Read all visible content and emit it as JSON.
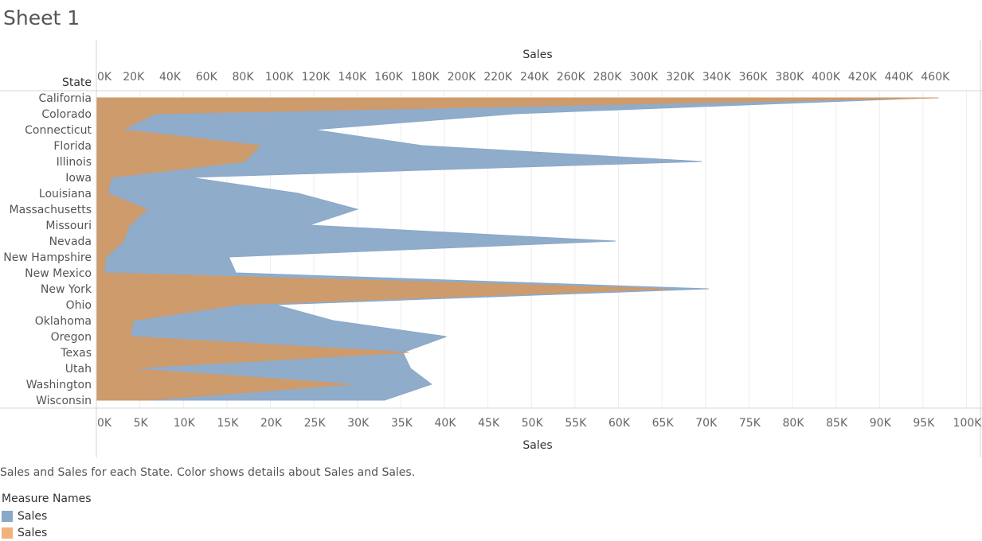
{
  "sheet_title": "Sheet 1",
  "caption": "Sales and Sales for each State.  Color shows details about Sales and Sales.",
  "legend": {
    "title": "Measure Names",
    "items": [
      {
        "label": "Sales",
        "color": "#8aa8c8"
      },
      {
        "label": "Sales",
        "color": "#f0b27a"
      }
    ]
  },
  "chart_data": {
    "type": "area",
    "orientation": "horizontal",
    "row_header": "State",
    "categories": [
      "California",
      "Colorado",
      "Connecticut",
      "Florida",
      "Illinois",
      "Iowa",
      "Louisiana",
      "Massachusetts",
      "Missouri",
      "Nevada",
      "New Hampshire",
      "New Mexico",
      "New York",
      "Ohio",
      "Oklahoma",
      "Oregon",
      "Texas",
      "Utah",
      "Washington",
      "Wisconsin"
    ],
    "top_axis": {
      "title": "Sales",
      "range": [
        0,
        470000
      ],
      "ticks": [
        0,
        20000,
        40000,
        60000,
        80000,
        100000,
        120000,
        140000,
        160000,
        180000,
        200000,
        220000,
        240000,
        260000,
        280000,
        300000,
        320000,
        340000,
        360000,
        380000,
        400000,
        420000,
        440000,
        460000
      ],
      "tick_labels": [
        "0K",
        "20K",
        "40K",
        "60K",
        "80K",
        "100K",
        "120K",
        "140K",
        "160K",
        "180K",
        "200K",
        "220K",
        "240K",
        "260K",
        "280K",
        "300K",
        "320K",
        "340K",
        "360K",
        "380K",
        "400K",
        "420K",
        "440K",
        "460K"
      ]
    },
    "bottom_axis": {
      "title": "Sales",
      "range": [
        0,
        100000
      ],
      "ticks": [
        0,
        5000,
        10000,
        15000,
        20000,
        25000,
        30000,
        35000,
        40000,
        45000,
        50000,
        55000,
        60000,
        65000,
        70000,
        75000,
        80000,
        85000,
        90000,
        95000,
        100000
      ],
      "tick_labels": [
        "0K",
        "5K",
        "10K",
        "15K",
        "20K",
        "25K",
        "30K",
        "35K",
        "40K",
        "45K",
        "50K",
        "55K",
        "60K",
        "65K",
        "70K",
        "75K",
        "80K",
        "85K",
        "90K",
        "95K",
        "100K"
      ]
    },
    "series": [
      {
        "axis": "top",
        "color": "#8aa8c8",
        "values": [
          457700,
          229900,
          119300,
          178700,
          332200,
          51500,
          110800,
          143200,
          116700,
          284900,
          72700,
          76600,
          336000,
          98200,
          129900,
          192100,
          168300,
          172400,
          183900,
          158200
        ]
      },
      {
        "axis": "bottom",
        "color": "#d19a66",
        "values": [
          96800,
          6800,
          3000,
          18800,
          17000,
          1700,
          1300,
          5800,
          3800,
          3100,
          1100,
          900,
          65800,
          16300,
          4200,
          3900,
          35900,
          3700,
          29300,
          5800
        ]
      }
    ],
    "grid": true,
    "legend_position": "bottom-left"
  }
}
